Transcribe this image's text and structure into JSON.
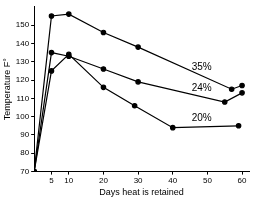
{
  "chart_data": {
    "type": "line",
    "x_label": "Days heat is retained",
    "y_label": "Temperature F°",
    "series": [
      {
        "name": "35%",
        "color": "#000000",
        "marker": "circle",
        "line_style": "solid",
        "x": [
          0,
          5,
          10,
          20,
          30,
          57,
          60
        ],
        "values": [
          70,
          155,
          156,
          146,
          138,
          115,
          117
        ]
      },
      {
        "name": "24%",
        "color": "#000000",
        "marker": "circle",
        "line_style": "solid",
        "x": [
          0,
          5,
          10,
          20,
          30,
          55,
          60
        ],
        "values": [
          70,
          135,
          133,
          126,
          119,
          108,
          113
        ]
      },
      {
        "name": "20%",
        "color": "#000000",
        "marker": "circle",
        "line_style": "solid",
        "x": [
          0,
          5,
          10,
          20,
          29,
          40,
          59
        ],
        "values": [
          70,
          125,
          134,
          116,
          106,
          94,
          95
        ]
      }
    ],
    "xlim": [
      0,
      62
    ],
    "xticks": [
      5,
      10,
      20,
      30,
      40,
      50,
      60
    ],
    "ylim": [
      70,
      160
    ],
    "yticks": [
      70,
      80,
      90,
      100,
      110,
      120,
      130,
      140,
      150
    ],
    "grid": false
  }
}
